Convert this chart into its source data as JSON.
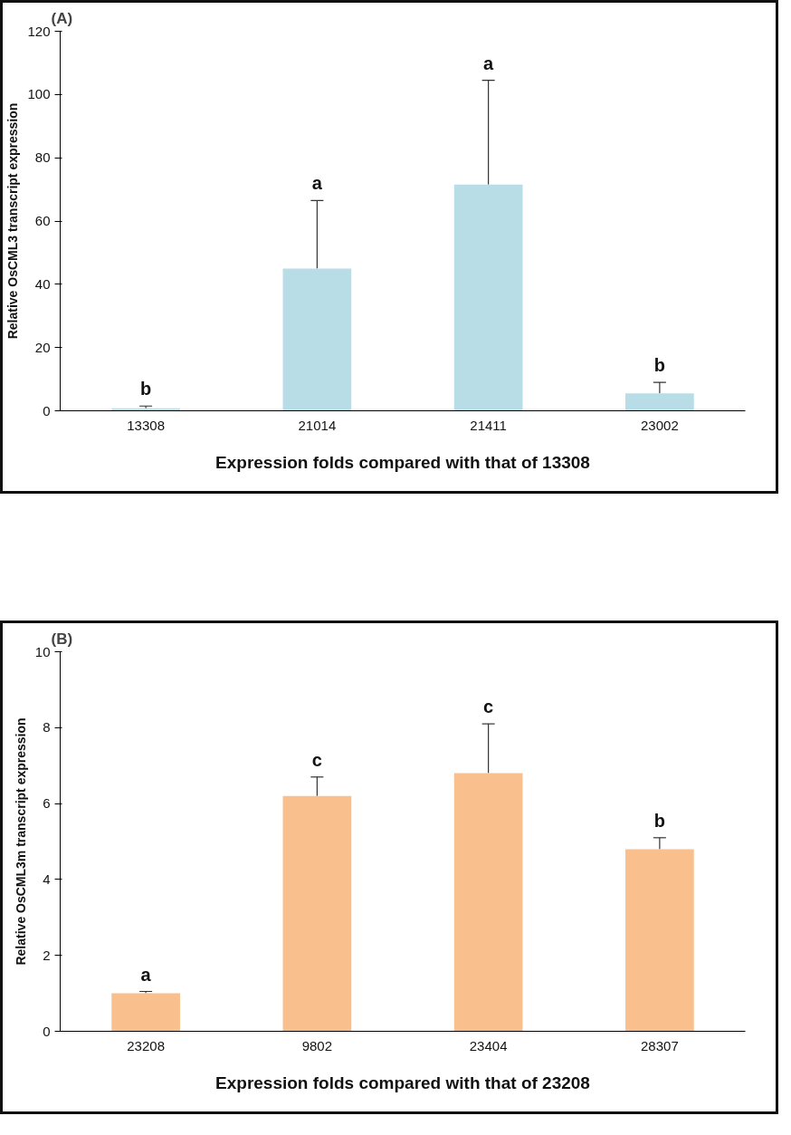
{
  "chart_data": [
    {
      "type": "bar",
      "title": "(A)",
      "xlabel": "Expression folds compared with that of 13308",
      "ylabel": "Relative OsCML3 transcript expression",
      "categories": [
        "13308",
        "21014",
        "21411",
        "23002"
      ],
      "series": [
        {
          "color": "#b8dde6",
          "values": [
            0.8,
            45,
            71.5,
            5.5
          ],
          "errors": [
            0.7,
            21.5,
            33,
            3.5
          ]
        }
      ],
      "ylim": [
        0,
        120
      ],
      "yticks": [
        0,
        20,
        40,
        60,
        80,
        100,
        120
      ],
      "grid": false,
      "annotations": [
        "b",
        "a",
        "a",
        "b"
      ]
    },
    {
      "type": "bar",
      "title": "(B)",
      "xlabel": "Expression folds compared with that of 23208",
      "ylabel": "Relative OsCML3m transcript expression",
      "categories": [
        "23208",
        "9802",
        "23404",
        "28307"
      ],
      "series": [
        {
          "color": "#f9c08e",
          "values": [
            1.0,
            6.2,
            6.8,
            4.8
          ],
          "errors": [
            0.05,
            0.5,
            1.3,
            0.3
          ]
        }
      ],
      "ylim": [
        0,
        10
      ],
      "yticks": [
        0,
        2,
        4,
        6,
        8,
        10
      ],
      "grid": false,
      "annotations": [
        "a",
        "c",
        "c",
        "b"
      ]
    }
  ]
}
